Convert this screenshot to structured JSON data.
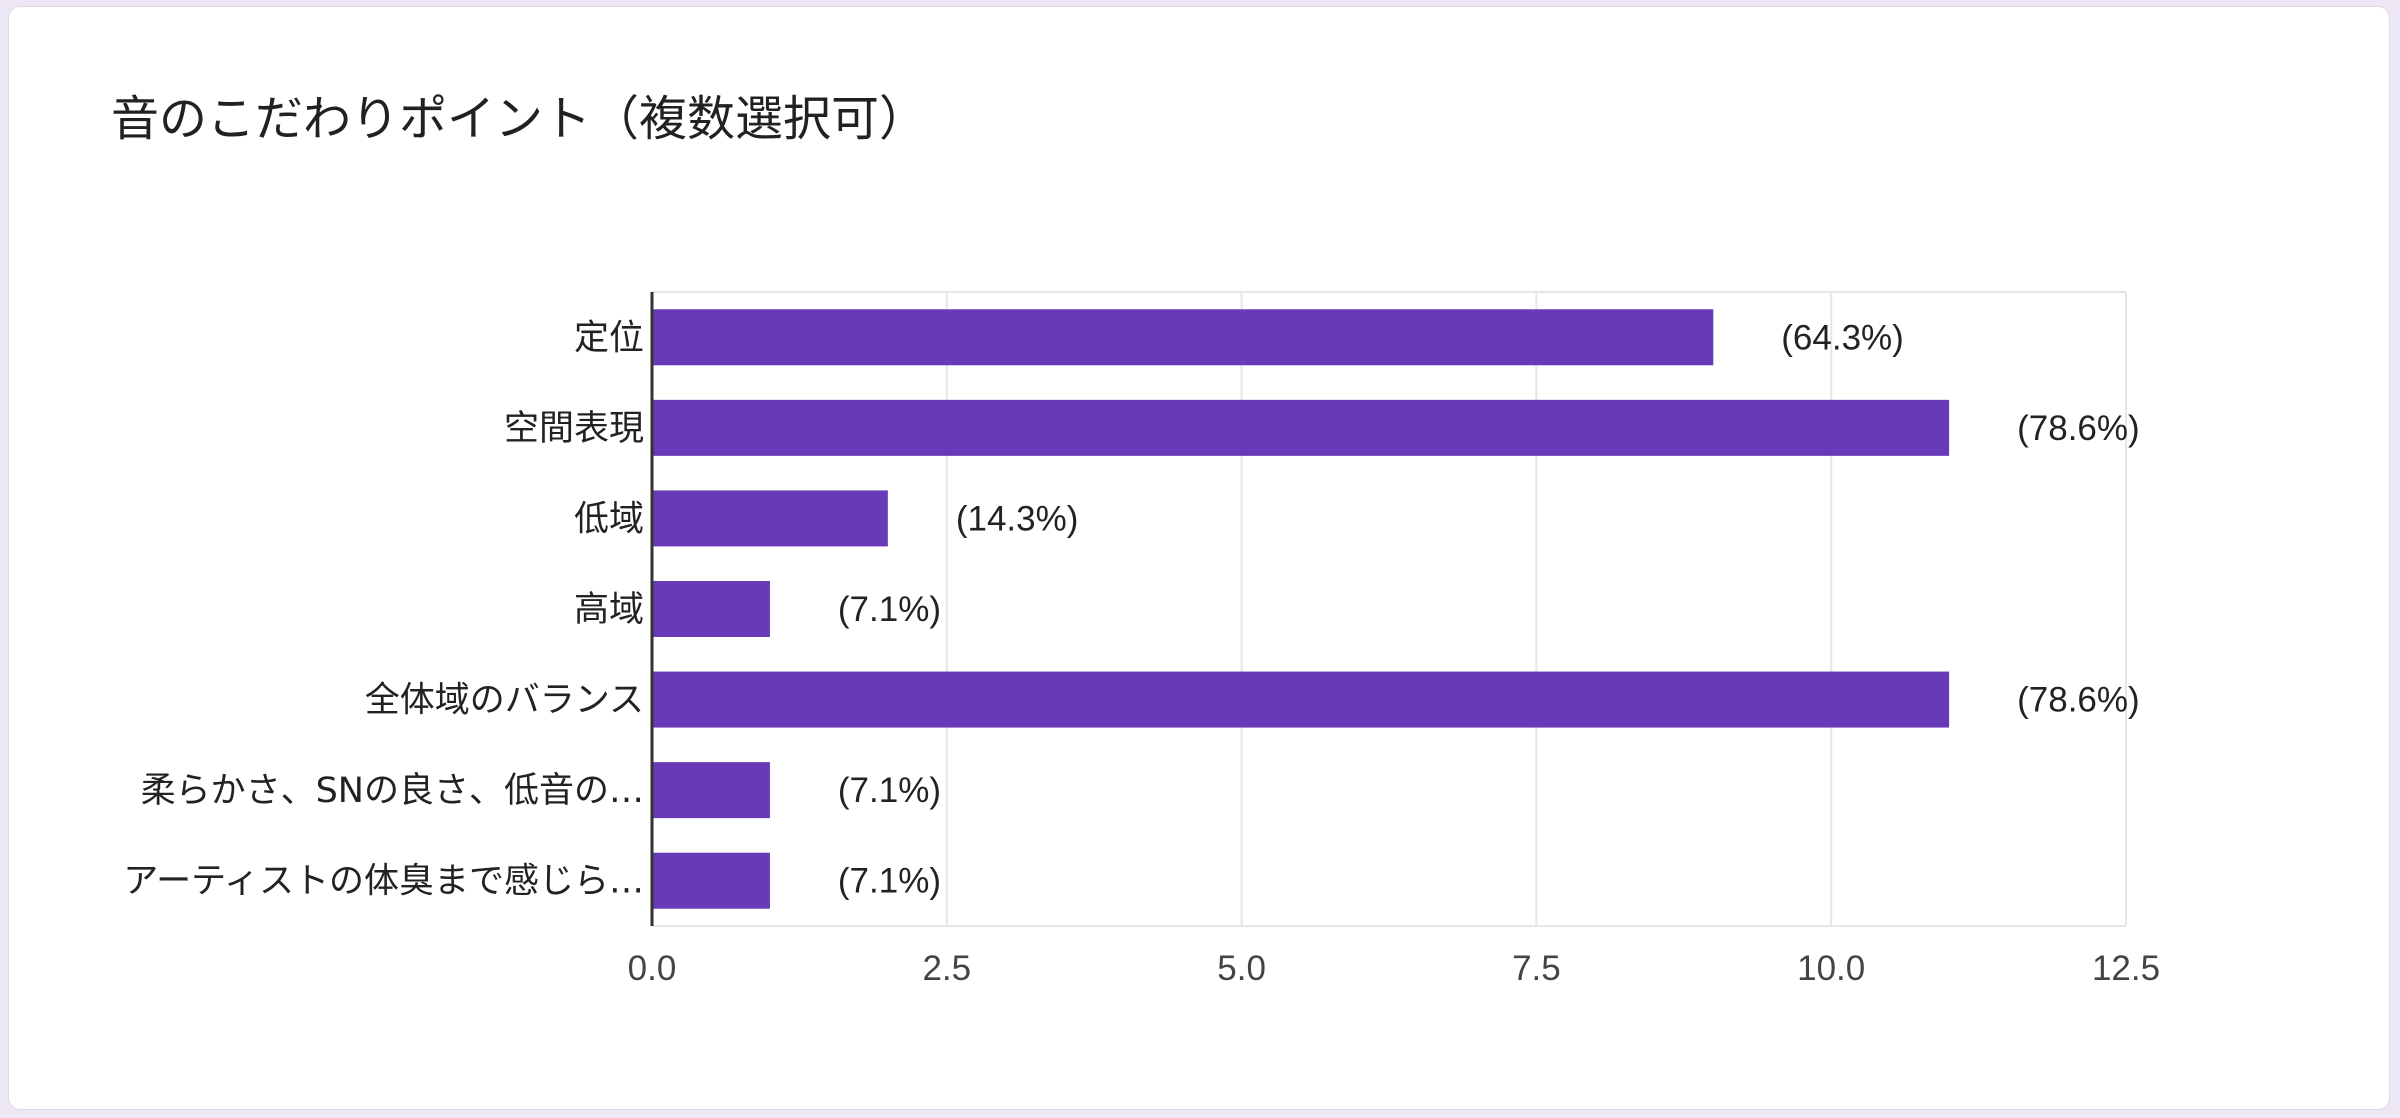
{
  "card": {
    "title": "音のこだわりポイント（複数選択可）"
  },
  "chart_data": {
    "type": "bar",
    "orientation": "horizontal",
    "categories": [
      "定位",
      "空間表現",
      "低域",
      "高域",
      "全体域のバランス",
      "柔らかさ、SNの良さ、低音の…",
      "アーティストの体臭まで感じら…"
    ],
    "values": [
      9,
      11,
      2,
      1,
      11,
      1,
      1
    ],
    "data_labels": [
      "(64.3%)",
      "(78.6%)",
      "(14.3%)",
      "(7.1%)",
      "(78.6%)",
      "(7.1%)",
      "(7.1%)"
    ],
    "xlim": [
      0,
      12.5
    ],
    "xticks": [
      "0.0",
      "2.5",
      "5.0",
      "7.5",
      "10.0",
      "12.5"
    ],
    "grid": true,
    "bar_color": "#673ab7"
  }
}
